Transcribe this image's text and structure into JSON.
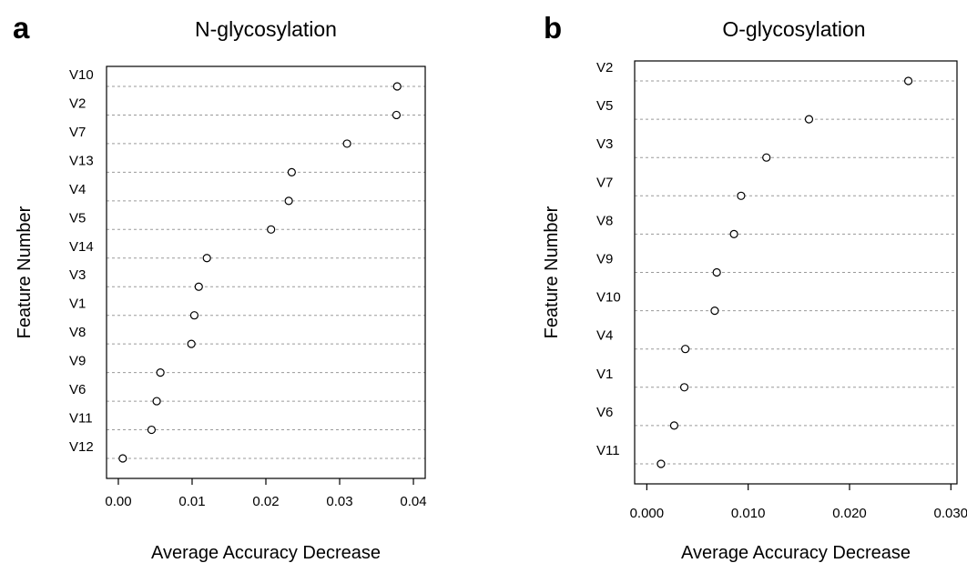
{
  "chart_data": [
    {
      "type": "scatter",
      "panel_letter": "a",
      "title": "N-glycosylation",
      "xlabel": "Average Accuracy Decrease",
      "ylabel": "Feature Number",
      "xlim": [
        -0.0016,
        0.0416
      ],
      "xticks": [
        "0.00",
        "0.01",
        "0.02",
        "0.03",
        "0.04"
      ],
      "xtick_values": [
        0,
        0.01,
        0.02,
        0.03,
        0.04
      ],
      "grid": "dotted horizontal",
      "categories": [
        "V10",
        "V2",
        "V7",
        "V13",
        "V4",
        "V5",
        "V14",
        "V3",
        "V1",
        "V8",
        "V9",
        "V6",
        "V11",
        "V12"
      ],
      "values": [
        0.0378,
        0.0377,
        0.031,
        0.0235,
        0.0231,
        0.0207,
        0.012,
        0.0109,
        0.0103,
        0.0099,
        0.0057,
        0.0052,
        0.0045,
        0.0006
      ]
    },
    {
      "type": "scatter",
      "panel_letter": "b",
      "title": "O-glycosylation",
      "xlabel": "Average Accuracy Decrease",
      "ylabel": "Feature Number",
      "xlim": [
        -0.0012,
        0.0306
      ],
      "xticks": [
        "0.000",
        "0.010",
        "0.020",
        "0.030"
      ],
      "xtick_values": [
        0,
        0.01,
        0.02,
        0.03
      ],
      "grid": "dotted horizontal",
      "categories": [
        "V2",
        "V5",
        "V3",
        "V7",
        "V8",
        "V9",
        "V10",
        "V4",
        "V1",
        "V6",
        "V11"
      ],
      "values": [
        0.0258,
        0.016,
        0.0118,
        0.0093,
        0.0086,
        0.0069,
        0.0067,
        0.0038,
        0.0037,
        0.0027,
        0.0014
      ]
    }
  ]
}
